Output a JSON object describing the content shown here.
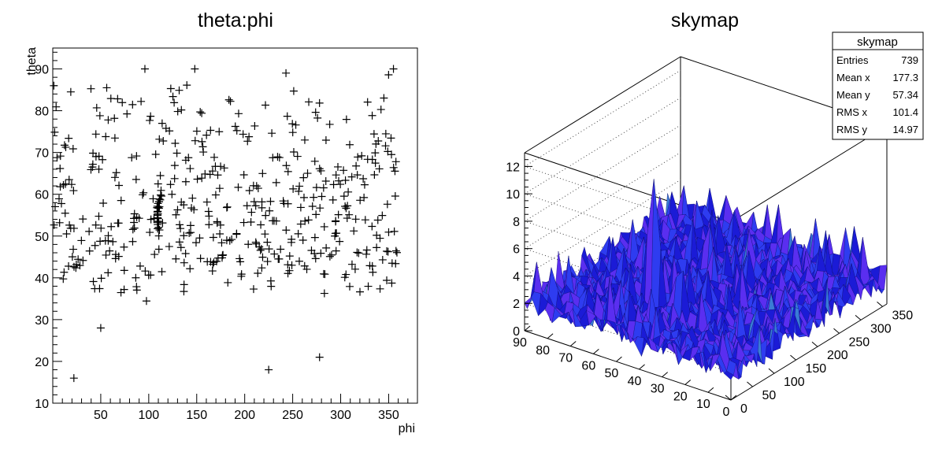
{
  "chart_data": [
    {
      "type": "scatter",
      "title": "theta:phi",
      "xlabel": "phi",
      "ylabel": "theta",
      "xlim": [
        0,
        380
      ],
      "ylim": [
        10,
        95
      ],
      "xticks": [
        50,
        100,
        150,
        200,
        250,
        300,
        350
      ],
      "yticks": [
        10,
        20,
        30,
        40,
        50,
        60,
        70,
        80,
        90
      ],
      "marker": "+",
      "marker_color": "#000000",
      "grid": false,
      "notable_points": [
        {
          "x": 225,
          "y": 18
        },
        {
          "x": 278,
          "y": 21
        },
        {
          "x": 22,
          "y": 16
        },
        {
          "x": 50,
          "y": 28
        },
        {
          "x": 96,
          "y": 90
        },
        {
          "x": 148,
          "y": 90
        },
        {
          "x": 243,
          "y": 89
        },
        {
          "x": 355,
          "y": 90
        }
      ],
      "cluster": {
        "x": 110,
        "y_range": [
          50,
          59
        ]
      },
      "approx_entries": 739
    },
    {
      "type": "surface3d",
      "title": "skymap",
      "x_axis": {
        "range": [
          0,
          360
        ],
        "ticks": [
          0,
          50,
          100,
          150,
          200,
          250,
          300,
          350
        ]
      },
      "y_axis": {
        "range": [
          0,
          90
        ],
        "ticks": [
          0,
          10,
          20,
          30,
          40,
          50,
          60,
          70,
          80,
          90
        ]
      },
      "z_axis": {
        "range": [
          0,
          13
        ],
        "ticks": [
          0,
          2,
          4,
          6,
          8,
          10,
          12
        ]
      },
      "peak": {
        "x": 110,
        "y": 55,
        "z": 11
      },
      "typical_height": [
        1,
        3
      ],
      "palette": [
        "#1b1bd6",
        "#2e3cf0",
        "#5a2ef0",
        "#3a7bd5",
        "#2fd7c7"
      ],
      "grid": true,
      "stats": {
        "title": "skymap",
        "rows": [
          {
            "label": "Entries",
            "value": "739"
          },
          {
            "label": "Mean x",
            "value": "177.3"
          },
          {
            "label": "Mean y",
            "value": "57.34"
          },
          {
            "label": "RMS x",
            "value": "101.4"
          },
          {
            "label": "RMS y",
            "value": "14.97"
          }
        ]
      }
    }
  ]
}
